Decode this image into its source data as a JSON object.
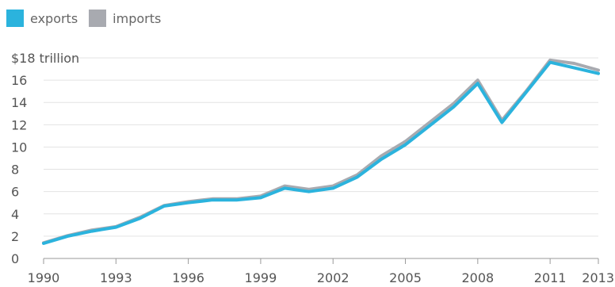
{
  "chart_data": {
    "type": "line",
    "x": [
      1990,
      1991,
      1992,
      1993,
      1994,
      1995,
      1996,
      1997,
      1998,
      1999,
      2000,
      2001,
      2002,
      2003,
      2004,
      2005,
      2006,
      2007,
      2008,
      2009,
      2010,
      2011,
      2012,
      2013
    ],
    "x_ticks": [
      "1990",
      "1993",
      "1996",
      "1999",
      "2002",
      "2005",
      "2008",
      "2011",
      "2013"
    ],
    "y_ticks": [
      "0",
      "2",
      "4",
      "6",
      "8",
      "10",
      "12",
      "14",
      "16",
      "$18 trillion"
    ],
    "y_tick_values": [
      0,
      2,
      4,
      6,
      8,
      10,
      12,
      14,
      16,
      18
    ],
    "ylim": [
      0,
      18
    ],
    "xlim": [
      1990,
      2013
    ],
    "grid": true,
    "legend_position": "top-left",
    "series": [
      {
        "name": "exports",
        "color": "#2bb3dd",
        "values": [
          1.35,
          2.0,
          2.45,
          2.8,
          3.6,
          4.7,
          5.0,
          5.25,
          5.25,
          5.45,
          6.3,
          6.0,
          6.3,
          7.3,
          8.9,
          10.2,
          11.9,
          13.6,
          15.7,
          12.2,
          14.9,
          17.6,
          17.1,
          16.6
        ]
      },
      {
        "name": "imports",
        "color": "#a8aab0",
        "values": [
          1.4,
          2.05,
          2.55,
          2.85,
          3.7,
          4.75,
          5.1,
          5.35,
          5.35,
          5.6,
          6.5,
          6.2,
          6.5,
          7.5,
          9.2,
          10.5,
          12.2,
          13.9,
          16.0,
          12.4,
          15.0,
          17.8,
          17.5,
          16.9
        ]
      }
    ]
  }
}
